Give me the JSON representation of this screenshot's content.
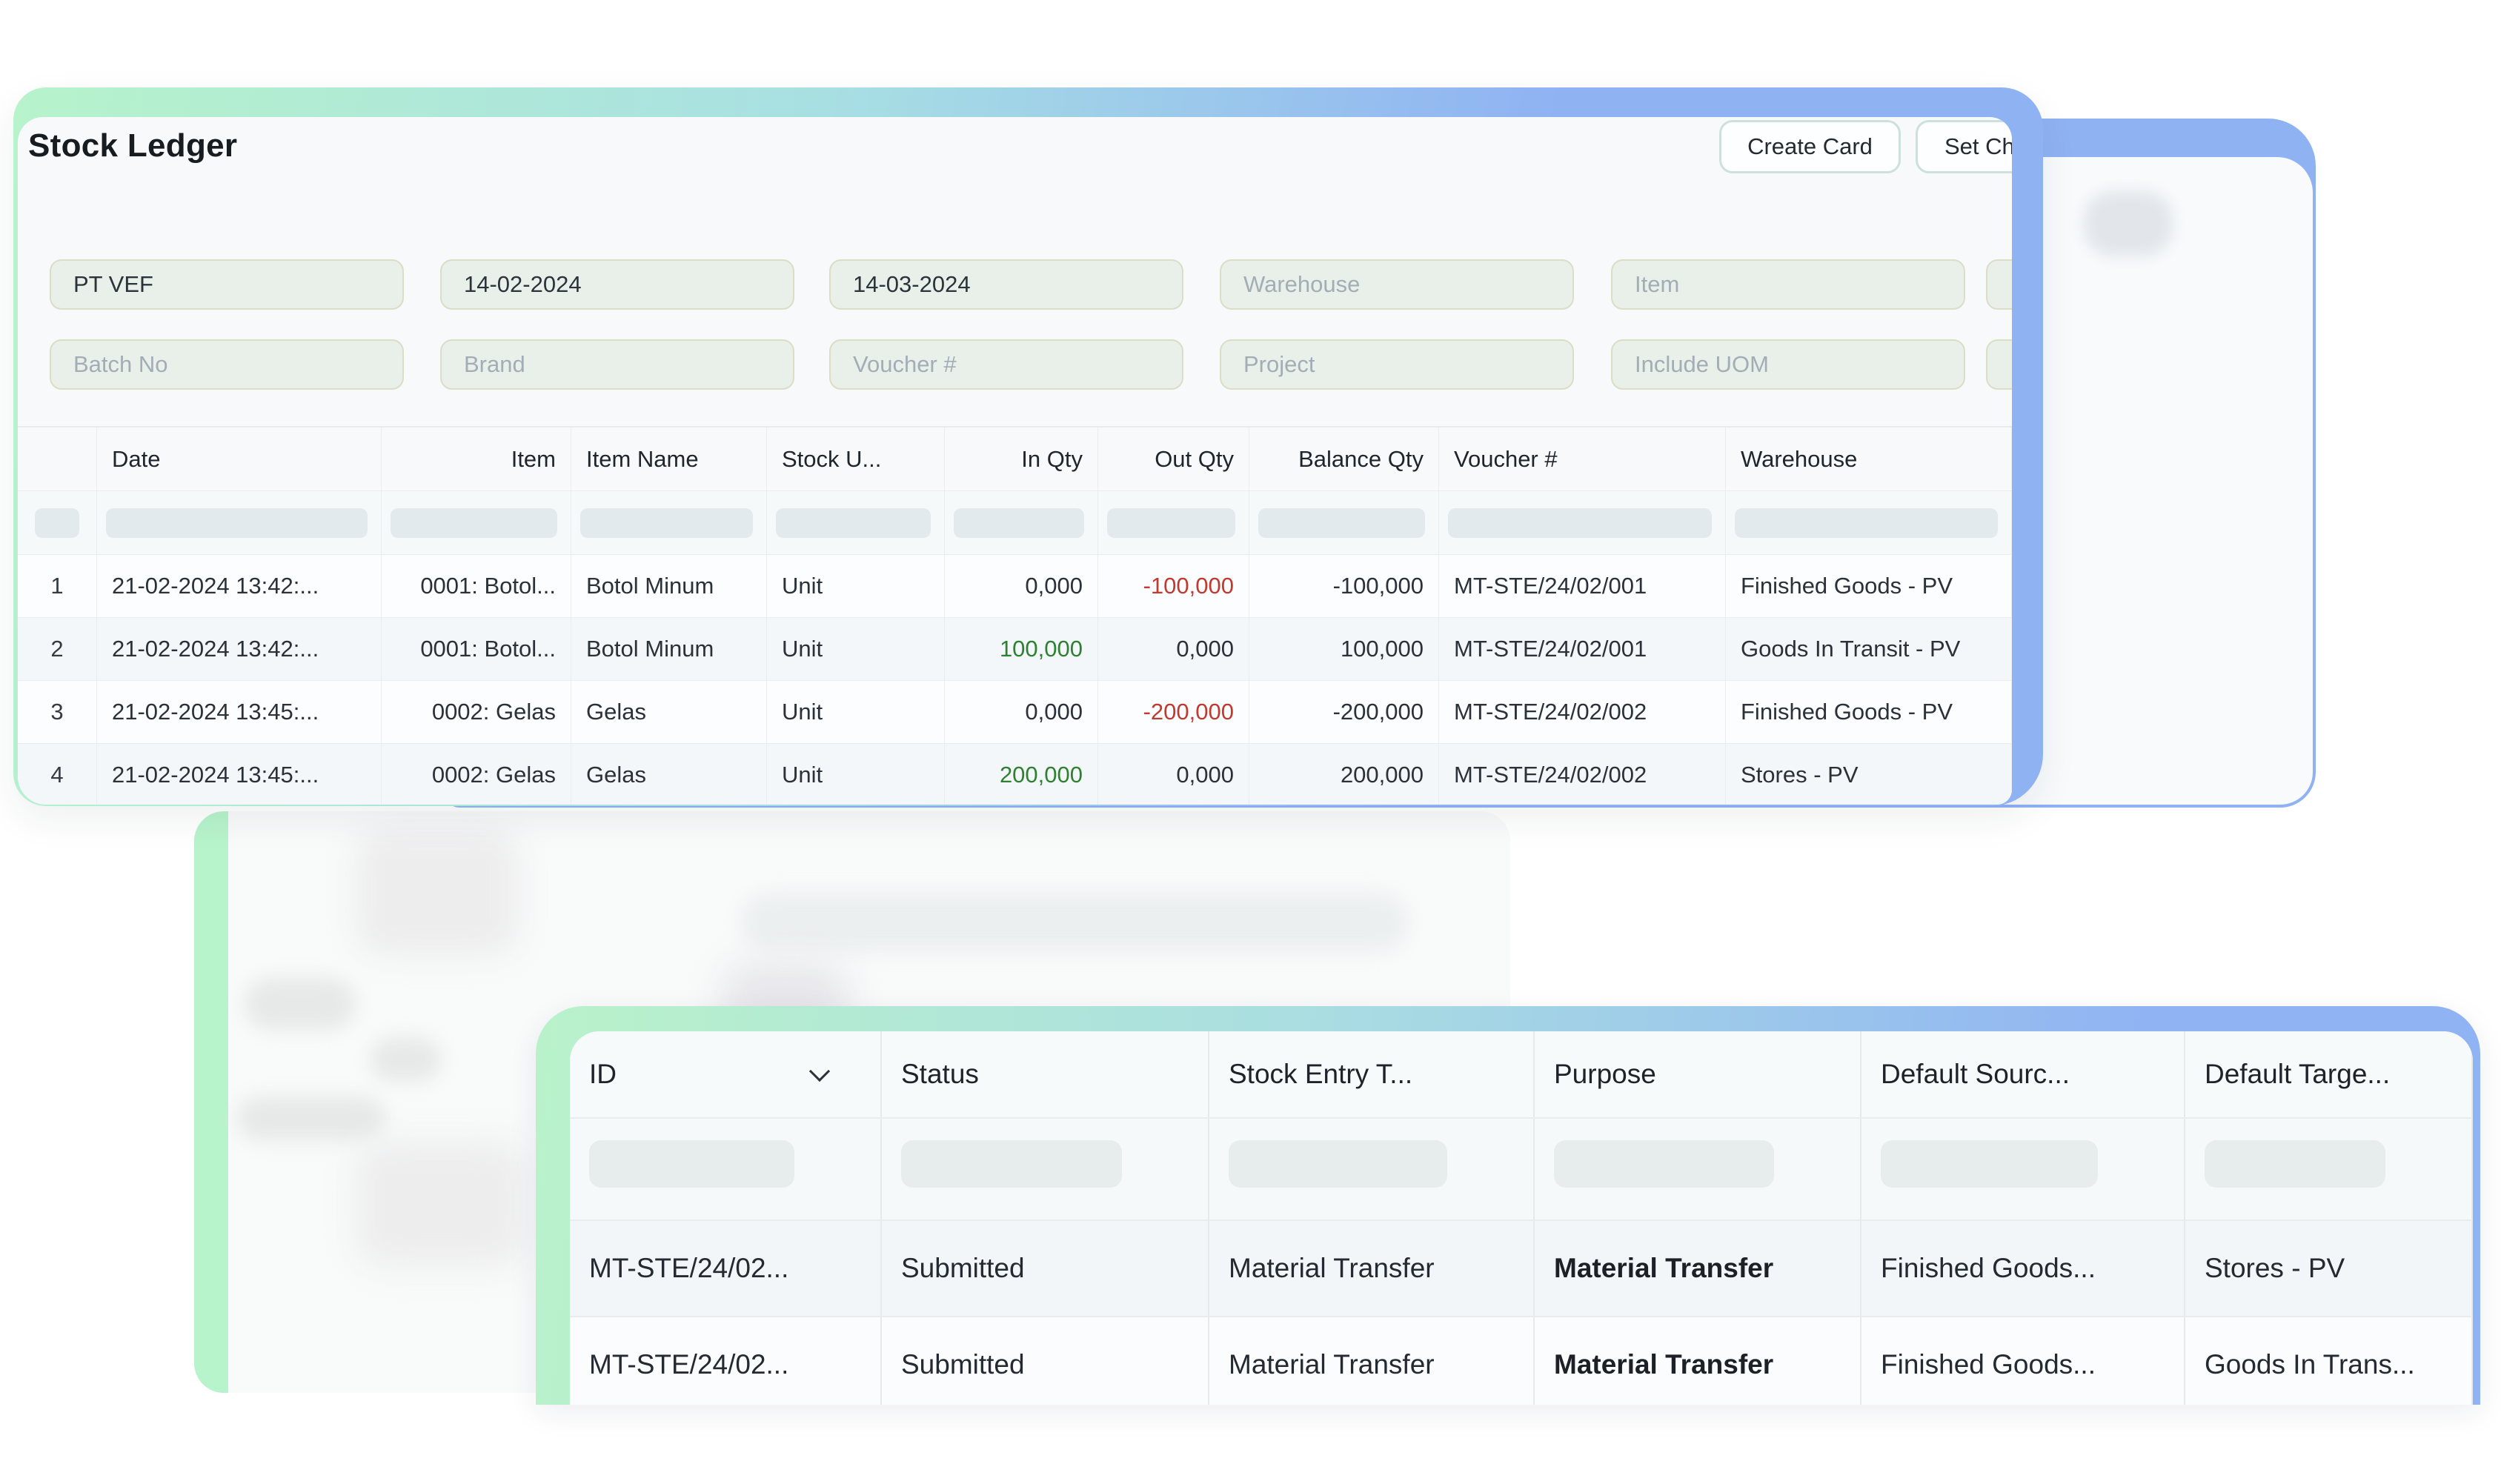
{
  "stock_ledger": {
    "title": "Stock Ledger",
    "actions": {
      "create_card": "Create Card",
      "set_chart": "Set Ch"
    },
    "filters": {
      "row1": [
        {
          "name": "company",
          "value": "PT VEF"
        },
        {
          "name": "from-date",
          "value": "14-02-2024"
        },
        {
          "name": "to-date",
          "value": "14-03-2024"
        },
        {
          "name": "warehouse",
          "placeholder": "Warehouse"
        },
        {
          "name": "item",
          "placeholder": "Item"
        },
        {
          "name": "extra-1",
          "placeholder": ""
        }
      ],
      "row2": [
        {
          "name": "batch-no",
          "placeholder": "Batch No"
        },
        {
          "name": "brand",
          "placeholder": "Brand"
        },
        {
          "name": "voucher-no",
          "placeholder": "Voucher #"
        },
        {
          "name": "project",
          "placeholder": "Project"
        },
        {
          "name": "include-uom",
          "placeholder": "Include UOM"
        },
        {
          "name": "extra-2",
          "placeholder": ""
        }
      ]
    },
    "table": {
      "columns": [
        "",
        "Date",
        "Item",
        "Item Name",
        "Stock U...",
        "In Qty",
        "Out Qty",
        "Balance Qty",
        "Voucher #",
        "Warehouse"
      ],
      "rows": [
        {
          "num": "1",
          "date": "21-02-2024 13:42:...",
          "item": "0001: Botol...",
          "item_name": "Botol Minum",
          "stock_uom": "Unit",
          "in_qty": "0,000",
          "in_qty_color": "normal",
          "out_qty": "-100,000",
          "out_qty_color": "red",
          "balance_qty": "-100,000",
          "voucher": "MT-STE/24/02/001",
          "warehouse": "Finished Goods - PV"
        },
        {
          "num": "2",
          "date": "21-02-2024 13:42:...",
          "item": "0001: Botol...",
          "item_name": "Botol Minum",
          "stock_uom": "Unit",
          "in_qty": "100,000",
          "in_qty_color": "green",
          "out_qty": "0,000",
          "out_qty_color": "normal",
          "balance_qty": "100,000",
          "voucher": "MT-STE/24/02/001",
          "warehouse": "Goods In Transit - PV"
        },
        {
          "num": "3",
          "date": "21-02-2024 13:45:...",
          "item": "0002: Gelas",
          "item_name": "Gelas",
          "stock_uom": "Unit",
          "in_qty": "0,000",
          "in_qty_color": "normal",
          "out_qty": "-200,000",
          "out_qty_color": "red",
          "balance_qty": "-200,000",
          "voucher": "MT-STE/24/02/002",
          "warehouse": "Finished Goods - PV"
        },
        {
          "num": "4",
          "date": "21-02-2024 13:45:...",
          "item": "0002: Gelas",
          "item_name": "Gelas",
          "stock_uom": "Unit",
          "in_qty": "200,000",
          "in_qty_color": "green",
          "out_qty": "0,000",
          "out_qty_color": "normal",
          "balance_qty": "200,000",
          "voucher": "MT-STE/24/02/002",
          "warehouse": "Stores - PV"
        }
      ]
    }
  },
  "stock_entry_list": {
    "columns": [
      "ID",
      "Status",
      "Stock Entry T...",
      "Purpose",
      "Default Sourc...",
      "Default Targe..."
    ],
    "rows": [
      {
        "id": "MT-STE/24/02...",
        "status": "Submitted",
        "stock_entry_type": "Material Transfer",
        "purpose": "Material Transfer",
        "default_source": "Finished Goods...",
        "default_target": "Stores - PV"
      },
      {
        "id": "MT-STE/24/02...",
        "status": "Submitted",
        "stock_entry_type": "Material Transfer",
        "purpose": "Material Transfer",
        "default_source": "Finished Goods...",
        "default_target": "Goods In Trans..."
      }
    ]
  },
  "colors": {
    "accent_green": "#b7f3cb",
    "accent_blue": "#8fb2f3",
    "positive": "#2f8132",
    "negative": "#c03a30",
    "input_bg": "#e9efe9",
    "input_border": "#dadec6"
  }
}
